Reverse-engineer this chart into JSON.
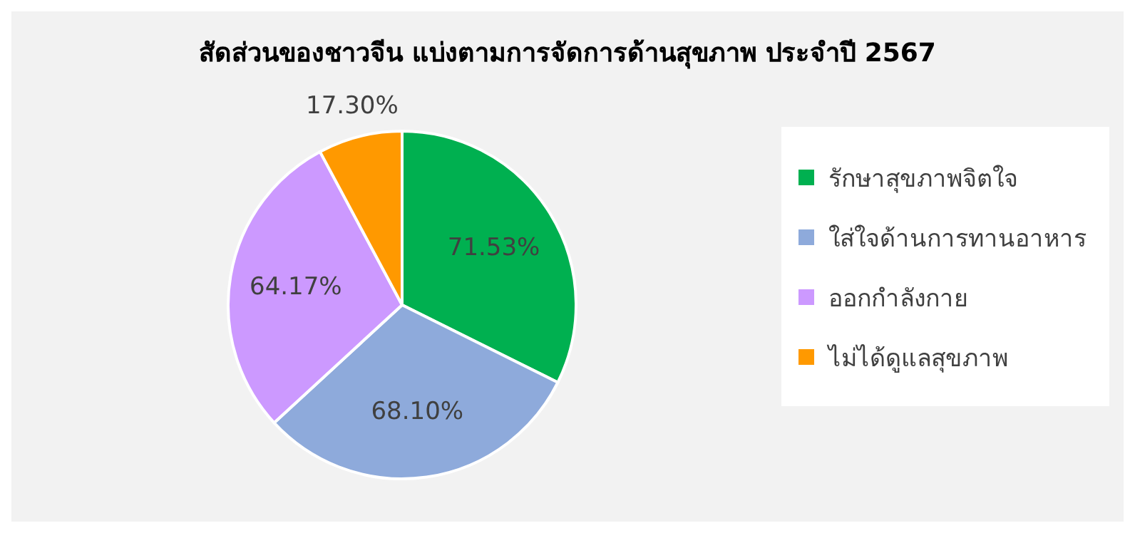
{
  "chart_data": {
    "type": "pie",
    "title": "สัดส่วนของชาวจีน แบ่งตามการจัดการด้านสุขภาพ ประจำปี 2567",
    "categories": [
      "รักษาสุขภาพจิตใจ",
      "ใส่ใจด้านการทานอาหาร",
      "ออกกำลังกาย",
      "ไม่ได้ดูแลสุขภาพ"
    ],
    "values": [
      71.53,
      68.1,
      64.17,
      17.3
    ],
    "value_labels": [
      "71.53%",
      "68.10%",
      "64.17%",
      "17.30%"
    ],
    "colors": [
      "#00b050",
      "#8eaadb",
      "#cc99ff",
      "#ff9900"
    ],
    "legend": "right"
  }
}
